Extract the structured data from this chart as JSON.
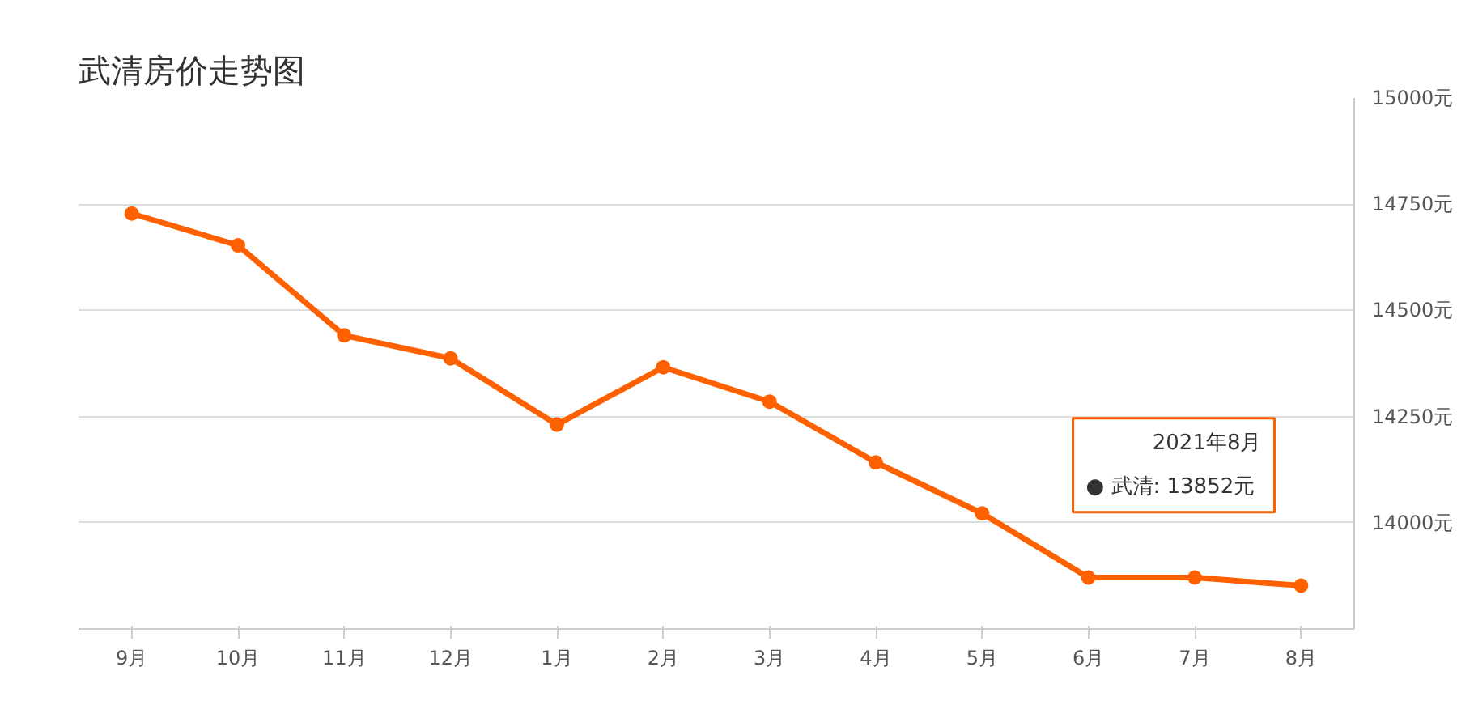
{
  "chart_data": {
    "type": "line",
    "title": "武清房价走势图",
    "categories": [
      "9月",
      "10月",
      "11月",
      "12月",
      "1月",
      "2月",
      "3月",
      "4月",
      "5月",
      "6月",
      "7月",
      "8月"
    ],
    "series": [
      {
        "color": "#ff6000",
        "values": [
          14728,
          14653,
          14441,
          14387,
          14231,
          14366,
          14285,
          14142,
          14022,
          13871,
          13871,
          13852
        ]
      }
    ],
    "ylim": [
      13750,
      15000
    ],
    "yticks": [
      {
        "value": 14000,
        "label": "14000元"
      },
      {
        "value": 14250,
        "label": "14250元"
      },
      {
        "value": 14500,
        "label": "14500元"
      },
      {
        "value": 14750,
        "label": "14750元"
      },
      {
        "value": 15000,
        "label": "15000元"
      }
    ],
    "grid": "y",
    "marker": "circle",
    "line_style": "solid",
    "annotations": [
      "2021年8月\n● 武清:  13852元"
    ]
  }
}
